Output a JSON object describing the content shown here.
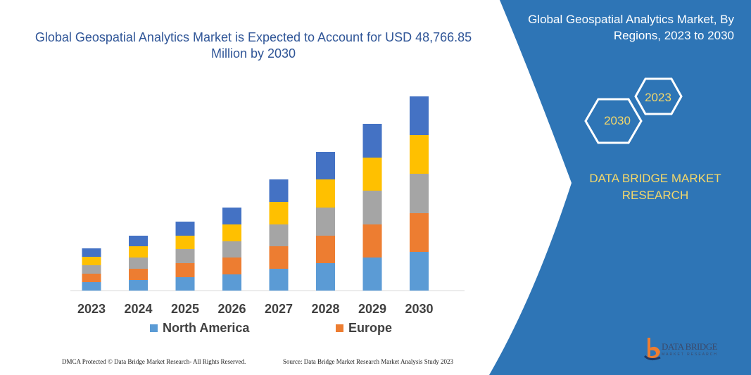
{
  "title": "Global Geospatial Analytics Market is Expected to Account for USD 48,766.85 Million by 2030",
  "side_panel": {
    "title": "Global Geospatial Analytics Market, By Regions, 2023 to 2030",
    "hex_start": "2023",
    "hex_end": "2030",
    "brand": "DATA BRIDGE MARKET RESEARCH",
    "panel_color": "#2e75b6",
    "logo_text": "DATA BRIDGE",
    "logo_sub": "MARKET RESEARCH"
  },
  "footer": {
    "left": "DMCA Protected © Data Bridge Market Research- All Rights Reserved.",
    "right": "Source: Data Bridge Market Research Market Analysis Study 2023"
  },
  "chart_data": {
    "type": "bar",
    "stacked": true,
    "categories": [
      "2023",
      "2024",
      "2025",
      "2026",
      "2027",
      "2028",
      "2029",
      "2030"
    ],
    "series": [
      {
        "name": "North America",
        "color": "#5b9bd5",
        "values": [
          12,
          15,
          19,
          23,
          31,
          39,
          47,
          55
        ]
      },
      {
        "name": "Europe",
        "color": "#ed7d31",
        "values": [
          12,
          16,
          20,
          24,
          32,
          39,
          47,
          55
        ]
      },
      {
        "color": "#a5a5a5",
        "values": [
          12,
          16,
          20,
          23,
          31,
          40,
          48,
          56
        ]
      },
      {
        "color": "#ffc000",
        "values": [
          12,
          16,
          19,
          24,
          32,
          40,
          47,
          55
        ]
      },
      {
        "color": "#4472c4",
        "values": [
          12,
          15,
          20,
          24,
          32,
          39,
          48,
          55
        ]
      }
    ],
    "y_axis_shown": false,
    "grid": false,
    "legend": "bottom",
    "ylim": [
      0,
      280
    ]
  }
}
